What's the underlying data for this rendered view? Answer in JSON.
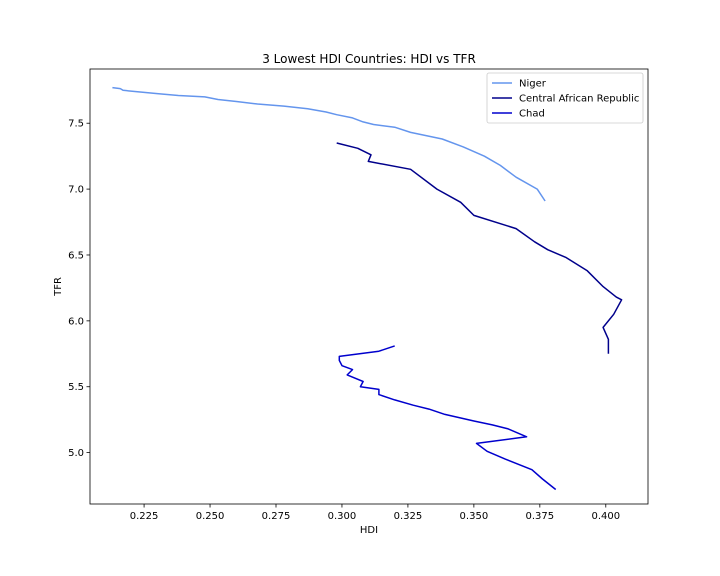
{
  "chart_data": {
    "type": "line",
    "title": "3 Lowest HDI Countries: HDI vs TFR",
    "xlabel": "HDI",
    "ylabel": "TFR",
    "xlim": [
      0.2045,
      0.416
    ],
    "ylim": [
      4.61,
      7.9115
    ],
    "xticks": [
      0.225,
      0.25,
      0.275,
      0.3,
      0.325,
      0.35,
      0.375,
      0.4
    ],
    "xtick_labels": [
      "0.225",
      "0.250",
      "0.275",
      "0.300",
      "0.325",
      "0.350",
      "0.375",
      "0.400"
    ],
    "yticks": [
      5.0,
      5.5,
      6.0,
      6.5,
      7.0,
      7.5
    ],
    "ytick_labels": [
      "5.0",
      "5.5",
      "6.0",
      "6.5",
      "7.0",
      "7.5"
    ],
    "grid": false,
    "legend_position": "top-right",
    "series": [
      {
        "name": "Niger",
        "color": "#6495ed",
        "x": [
          0.213,
          0.216,
          0.217,
          0.222,
          0.23,
          0.238,
          0.248,
          0.253,
          0.26,
          0.268,
          0.278,
          0.287,
          0.294,
          0.298,
          0.304,
          0.308,
          0.312,
          0.32,
          0.326,
          0.338,
          0.346,
          0.354,
          0.36,
          0.366,
          0.374,
          0.377
        ],
        "y": [
          7.77,
          7.763,
          7.75,
          7.74,
          7.725,
          7.71,
          7.7,
          7.68,
          7.665,
          7.646,
          7.63,
          7.61,
          7.585,
          7.565,
          7.54,
          7.51,
          7.49,
          7.47,
          7.43,
          7.38,
          7.32,
          7.25,
          7.18,
          7.09,
          7.0,
          6.91
        ]
      },
      {
        "name": "Central African Republic",
        "color": "#00008b",
        "x": [
          0.298,
          0.306,
          0.311,
          0.31,
          0.326,
          0.336,
          0.345,
          0.35,
          0.366,
          0.373,
          0.378,
          0.385,
          0.393,
          0.399,
          0.404,
          0.406,
          0.403,
          0.399,
          0.401,
          0.401
        ],
        "y": [
          7.35,
          7.31,
          7.26,
          7.21,
          7.15,
          7.0,
          6.9,
          6.8,
          6.7,
          6.6,
          6.54,
          6.48,
          6.38,
          6.26,
          6.18,
          6.16,
          6.05,
          5.95,
          5.86,
          5.75
        ]
      },
      {
        "name": "Chad",
        "color": "#0000cd",
        "x": [
          0.32,
          0.314,
          0.299,
          0.299,
          0.3,
          0.304,
          0.302,
          0.308,
          0.307,
          0.314,
          0.314,
          0.32,
          0.327,
          0.333,
          0.339,
          0.35,
          0.357,
          0.363,
          0.37,
          0.351,
          0.355,
          0.362,
          0.372,
          0.376,
          0.381
        ],
        "y": [
          5.81,
          5.77,
          5.73,
          5.7,
          5.66,
          5.63,
          5.59,
          5.54,
          5.5,
          5.48,
          5.44,
          5.4,
          5.36,
          5.33,
          5.29,
          5.24,
          5.21,
          5.18,
          5.12,
          5.07,
          5.01,
          4.95,
          4.87,
          4.8,
          4.72
        ]
      }
    ]
  }
}
